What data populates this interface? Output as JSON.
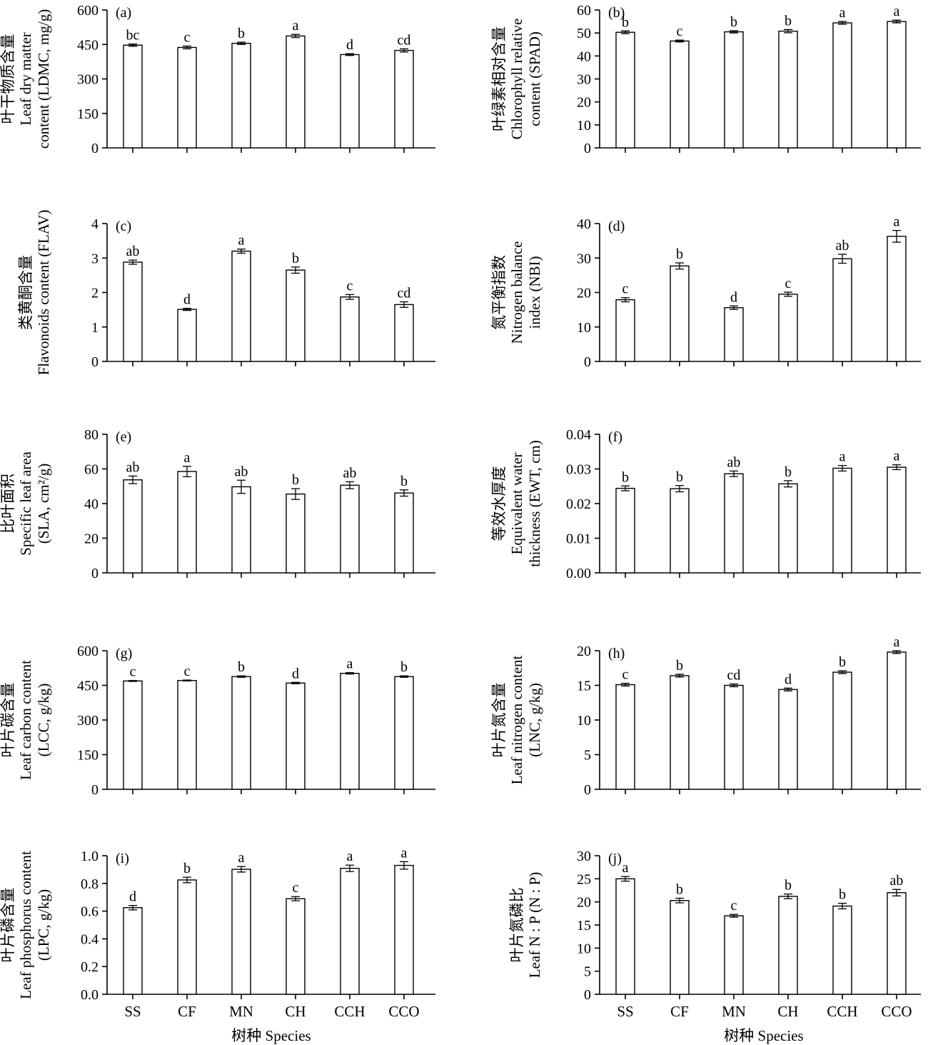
{
  "figure": {
    "xlabel_left": "树种 Species",
    "xlabel_right": "树种 Species"
  },
  "chart_data": [
    {
      "type": "bar",
      "panel": "(a)",
      "ylabel": [
        "叶干物质含量",
        "Leaf dry matter",
        "content (LDMC, mg/g)"
      ],
      "categories": [
        "SS",
        "CF",
        "MN",
        "CH",
        "CCH",
        "CCO"
      ],
      "values": [
        447,
        437,
        455,
        487,
        406,
        424
      ],
      "errors": [
        5,
        6,
        5,
        7,
        4,
        7
      ],
      "letters": [
        "bc",
        "c",
        "b",
        "a",
        "d",
        "cd"
      ],
      "ylim": [
        0,
        600
      ],
      "yticks": [
        "0",
        "150",
        "300",
        "450",
        "600"
      ],
      "show_xticks": false
    },
    {
      "type": "bar",
      "panel": "(b)",
      "ylabel": [
        "叶绿素相对含量",
        "Chlorophyll relative",
        "content (SPAD)"
      ],
      "categories": [
        "SS",
        "CF",
        "MN",
        "CH",
        "CCH",
        "CCO"
      ],
      "values": [
        50.3,
        46.5,
        50.5,
        50.8,
        54.4,
        55.0
      ],
      "errors": [
        0.6,
        0.4,
        0.5,
        0.7,
        0.6,
        0.6
      ],
      "letters": [
        "b",
        "c",
        "b",
        "b",
        "a",
        "a"
      ],
      "ylim": [
        0,
        60
      ],
      "yticks": [
        "0",
        "10",
        "20",
        "30",
        "40",
        "50",
        "60"
      ],
      "show_xticks": false
    },
    {
      "type": "bar",
      "panel": "(c)",
      "ylabel": [
        "类黄酮含量",
        "Flavonoids content (FLAV)"
      ],
      "categories": [
        "SS",
        "CF",
        "MN",
        "CH",
        "CCH",
        "CCO"
      ],
      "values": [
        2.88,
        1.51,
        3.2,
        2.65,
        1.87,
        1.65
      ],
      "errors": [
        0.06,
        0.03,
        0.06,
        0.09,
        0.07,
        0.08
      ],
      "letters": [
        "ab",
        "d",
        "a",
        "b",
        "c",
        "cd"
      ],
      "ylim": [
        0,
        4
      ],
      "yticks": [
        "0",
        "1",
        "2",
        "3",
        "4"
      ],
      "show_xticks": false
    },
    {
      "type": "bar",
      "panel": "(d)",
      "ylabel": [
        "氮平衡指数",
        "Nitrogen balance",
        "index (NBI)"
      ],
      "categories": [
        "SS",
        "CF",
        "MN",
        "CH",
        "CCH",
        "CCO"
      ],
      "values": [
        17.9,
        27.7,
        15.6,
        19.5,
        29.8,
        36.3
      ],
      "errors": [
        0.6,
        0.9,
        0.5,
        0.6,
        1.3,
        1.7
      ],
      "letters": [
        "c",
        "b",
        "d",
        "c",
        "ab",
        "a"
      ],
      "ylim": [
        0,
        40
      ],
      "yticks": [
        "0",
        "10",
        "20",
        "30",
        "40"
      ],
      "show_xticks": false
    },
    {
      "type": "bar",
      "panel": "(e)",
      "ylabel": [
        "比叶面积",
        "Specific leaf area",
        "(SLA, cm²/g)"
      ],
      "categories": [
        "SS",
        "CF",
        "MN",
        "CH",
        "CCH",
        "CCO"
      ],
      "values": [
        53.7,
        58.5,
        49.7,
        45.5,
        50.6,
        46.1
      ],
      "errors": [
        2.2,
        3.0,
        3.8,
        3.1,
        2.0,
        1.8
      ],
      "letters": [
        "ab",
        "a",
        "ab",
        "b",
        "ab",
        "b"
      ],
      "ylim": [
        0,
        80
      ],
      "yticks": [
        "0",
        "20",
        "40",
        "60",
        "80"
      ],
      "show_xticks": false
    },
    {
      "type": "bar",
      "panel": "(f)",
      "ylabel": [
        "等效水厚度",
        "Equivalent water",
        "thickness (EWT, cm)"
      ],
      "categories": [
        "SS",
        "CF",
        "MN",
        "CH",
        "CCH",
        "CCO"
      ],
      "values": [
        0.0244,
        0.0243,
        0.0286,
        0.0257,
        0.0302,
        0.0305
      ],
      "errors": [
        0.0007,
        0.0009,
        0.0008,
        0.0009,
        0.0008,
        0.0007
      ],
      "letters": [
        "b",
        "b",
        "ab",
        "b",
        "a",
        "a"
      ],
      "ylim": [
        0,
        0.04
      ],
      "yticks": [
        "0.00",
        "0.01",
        "0.02",
        "0.03",
        "0.04"
      ],
      "show_xticks": false
    },
    {
      "type": "bar",
      "panel": "(g)",
      "ylabel": [
        "叶片碳含量",
        "Leaf carbon content",
        "(LCC, g/kg)"
      ],
      "categories": [
        "SS",
        "CF",
        "MN",
        "CH",
        "CCH",
        "CCO"
      ],
      "values": [
        469,
        471,
        488,
        460,
        502,
        488
      ],
      "errors": [
        2,
        2,
        3,
        3,
        3,
        3
      ],
      "letters": [
        "c",
        "c",
        "b",
        "d",
        "a",
        "b"
      ],
      "ylim": [
        0,
        600
      ],
      "yticks": [
        "0",
        "150",
        "300",
        "450",
        "600"
      ],
      "show_xticks": false
    },
    {
      "type": "bar",
      "panel": "(h)",
      "ylabel": [
        "叶片氮含量",
        "Leaf nitrogen content",
        "(LNC, g/kg)"
      ],
      "categories": [
        "SS",
        "CF",
        "MN",
        "CH",
        "CCH",
        "CCO"
      ],
      "values": [
        15.1,
        16.4,
        15.0,
        14.4,
        16.9,
        19.8
      ],
      "errors": [
        0.2,
        0.2,
        0.2,
        0.2,
        0.2,
        0.2
      ],
      "letters": [
        "c",
        "b",
        "cd",
        "d",
        "b",
        "a"
      ],
      "ylim": [
        0,
        20
      ],
      "yticks": [
        "0",
        "5",
        "10",
        "15",
        "20"
      ],
      "show_xticks": false
    },
    {
      "type": "bar",
      "panel": "(i)",
      "ylabel": [
        "叶片磷含量",
        "Leaf phosphorus content",
        "(LPC, g/kg)"
      ],
      "categories": [
        "SS",
        "CF",
        "MN",
        "CH",
        "CCH",
        "CCO"
      ],
      "values": [
        0.625,
        0.825,
        0.902,
        0.69,
        0.909,
        0.93
      ],
      "errors": [
        0.016,
        0.02,
        0.02,
        0.015,
        0.023,
        0.027
      ],
      "letters": [
        "d",
        "b",
        "a",
        "c",
        "a",
        "a"
      ],
      "ylim": [
        0,
        1.0
      ],
      "yticks": [
        "0.0",
        "0.2",
        "0.4",
        "0.6",
        "0.8",
        "1.0"
      ],
      "show_xticks": true
    },
    {
      "type": "bar",
      "panel": "(j)",
      "ylabel": [
        "叶片氮磷比",
        "Leaf N : P (N : P)"
      ],
      "categories": [
        "SS",
        "CF",
        "MN",
        "CH",
        "CCH",
        "CCO"
      ],
      "values": [
        25.0,
        20.3,
        17.0,
        21.2,
        19.1,
        22.0
      ],
      "errors": [
        0.5,
        0.5,
        0.3,
        0.5,
        0.6,
        0.7
      ],
      "letters": [
        "a",
        "b",
        "c",
        "b",
        "b",
        "ab"
      ],
      "ylim": [
        0,
        30
      ],
      "yticks": [
        "0",
        "5",
        "10",
        "15",
        "20",
        "25",
        "30"
      ],
      "show_xticks": true
    }
  ]
}
